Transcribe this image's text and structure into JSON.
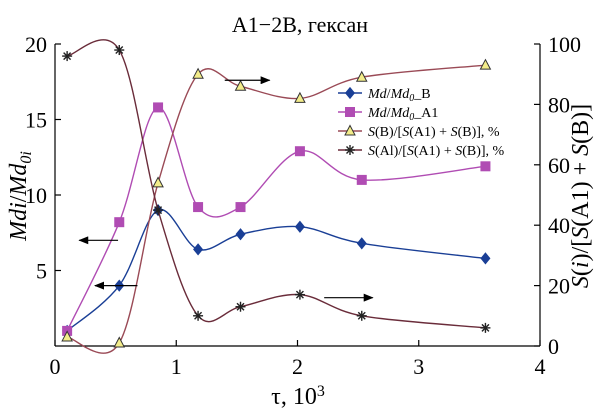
{
  "chart_data": {
    "type": "line",
    "title": "A1−2B, гексан",
    "xlabel_parts": [
      "τ, 10",
      "3"
    ],
    "ylabel_left_parts": [
      "Mdi",
      "/",
      "Md",
      "0i"
    ],
    "ylabel_right_parts": [
      "S",
      "(",
      "i",
      ")/[",
      "S",
      "(A1) + ",
      "S",
      "(B)]"
    ],
    "xlim": [
      0,
      4
    ],
    "ylim_left": [
      0,
      20
    ],
    "ylim_right": [
      0,
      100
    ],
    "xticks": [
      "0",
      "1",
      "2",
      "3",
      "4"
    ],
    "xtick_values": [
      0,
      1,
      2,
      3,
      4
    ],
    "yticks_left": [
      "5",
      "10",
      "15",
      "20"
    ],
    "ytick_left_values": [
      5,
      10,
      15,
      20
    ],
    "yticks_right": [
      "0",
      "20",
      "40",
      "60",
      "80",
      "100"
    ],
    "ytick_right_values": [
      0,
      20,
      40,
      60,
      80,
      100
    ],
    "grid": false,
    "legend_placement": "right",
    "series": [
      {
        "name": "Md/Md0_B",
        "legend_parts": [
          [
            "Md",
            "i"
          ],
          [
            "/",
            "n"
          ],
          [
            "Md",
            "i"
          ],
          [
            "0",
            "sub"
          ],
          [
            "_B",
            "n"
          ]
        ],
        "axis": "left",
        "marker": "diamond",
        "color": "#1a3f96",
        "x": [
          0.1,
          0.53,
          0.85,
          1.18,
          1.53,
          2.02,
          2.53,
          3.55
        ],
        "y": [
          1.0,
          4.0,
          9.0,
          6.4,
          7.4,
          7.9,
          6.8,
          5.8
        ]
      },
      {
        "name": "Md/Md0_A1",
        "legend_parts": [
          [
            "Md",
            "i"
          ],
          [
            "/",
            "n"
          ],
          [
            "Md",
            "i"
          ],
          [
            "0",
            "sub"
          ],
          [
            "_A1",
            "n"
          ]
        ],
        "axis": "left",
        "marker": "square",
        "color": "#b04cb3",
        "x": [
          0.1,
          0.53,
          0.85,
          1.18,
          1.53,
          2.02,
          2.53,
          3.55
        ],
        "y": [
          1.0,
          8.2,
          15.8,
          9.2,
          9.2,
          12.9,
          11.0,
          11.9
        ]
      },
      {
        "name": "S(B)/[S(A1) + S(B)], %",
        "legend_parts": [
          [
            "S",
            "i"
          ],
          [
            "(B)/[",
            "n"
          ],
          [
            "S",
            "i"
          ],
          [
            "(A1) + ",
            "n"
          ],
          [
            "S",
            "i"
          ],
          [
            "(B)], %",
            "n"
          ]
        ],
        "axis": "right",
        "marker": "triangle",
        "color": "#9a4a56",
        "x": [
          0.1,
          0.53,
          0.85,
          1.18,
          1.53,
          2.02,
          2.53,
          3.55
        ],
        "y": [
          3,
          1,
          54,
          90,
          86,
          82,
          89,
          93
        ]
      },
      {
        "name": "S(Al)/[S(A1) + S(B)], %",
        "legend_parts": [
          [
            "S",
            "i"
          ],
          [
            "(Al)/[",
            "n"
          ],
          [
            "S",
            "i"
          ],
          [
            "(A1) + ",
            "n"
          ],
          [
            "S",
            "i"
          ],
          [
            "(B)], %",
            "n"
          ]
        ],
        "axis": "right",
        "marker": "star",
        "color": "#6a2c3a",
        "x": [
          0.1,
          0.53,
          0.85,
          1.18,
          1.53,
          2.02,
          2.53,
          3.55
        ],
        "y": [
          96,
          98,
          45,
          10,
          13,
          17,
          10,
          6
        ]
      }
    ],
    "annotations": [
      {
        "kind": "arrow",
        "direction": "left",
        "x_from": 0.52,
        "x_to": 0.2,
        "y": 7.0,
        "axis": "left"
      },
      {
        "kind": "arrow",
        "direction": "left",
        "x_from": 0.68,
        "x_to": 0.33,
        "y": 4.0,
        "axis": "left"
      },
      {
        "kind": "arrow",
        "direction": "right",
        "x_from": 1.4,
        "x_to": 1.77,
        "y": 88,
        "axis": "right"
      },
      {
        "kind": "arrow",
        "direction": "right",
        "x_from": 2.22,
        "x_to": 2.62,
        "y": 16,
        "axis": "right"
      }
    ]
  }
}
